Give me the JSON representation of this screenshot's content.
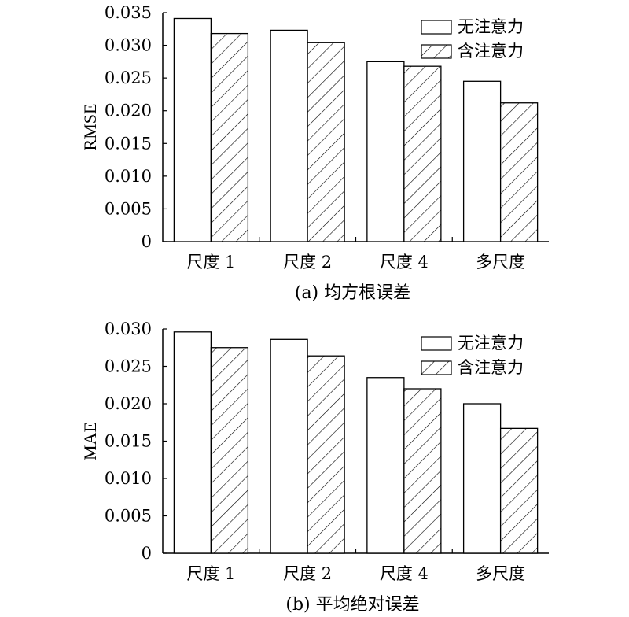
{
  "chart_data": [
    {
      "type": "bar",
      "panel_label": "(a) 均方根误差",
      "ylabel": "RMSE",
      "categories": [
        "尺度 1",
        "尺度 2",
        "尺度 4",
        "多尺度"
      ],
      "series": [
        {
          "name": "无注意力",
          "pattern": "none",
          "values": [
            0.0341,
            0.0323,
            0.0275,
            0.0245
          ]
        },
        {
          "name": "含注意力",
          "pattern": "hatched",
          "values": [
            0.0318,
            0.0304,
            0.0268,
            0.0212
          ]
        }
      ],
      "ylim": [
        0,
        0.035
      ],
      "yticks": [
        "0",
        "0.005",
        "0.010",
        "0.015",
        "0.020",
        "0.025",
        "0.030",
        "0.035"
      ],
      "ytick_values": [
        0,
        0.005,
        0.01,
        0.015,
        0.02,
        0.025,
        0.03,
        0.035
      ],
      "legend_position": "top-right",
      "grid": false
    },
    {
      "type": "bar",
      "panel_label": "(b) 平均绝对误差",
      "ylabel": "MAE",
      "categories": [
        "尺度 1",
        "尺度 2",
        "尺度 4",
        "多尺度"
      ],
      "series": [
        {
          "name": "无注意力",
          "pattern": "none",
          "values": [
            0.0296,
            0.0286,
            0.0235,
            0.02
          ]
        },
        {
          "name": "含注意力",
          "pattern": "hatched",
          "values": [
            0.0275,
            0.0264,
            0.022,
            0.0167
          ]
        }
      ],
      "ylim": [
        0,
        0.03
      ],
      "yticks": [
        "0",
        "0.005",
        "0.010",
        "0.015",
        "0.020",
        "0.025",
        "0.030"
      ],
      "ytick_values": [
        0,
        0.005,
        0.01,
        0.015,
        0.02,
        0.025,
        0.03
      ],
      "legend_position": "top-right",
      "grid": false
    }
  ]
}
